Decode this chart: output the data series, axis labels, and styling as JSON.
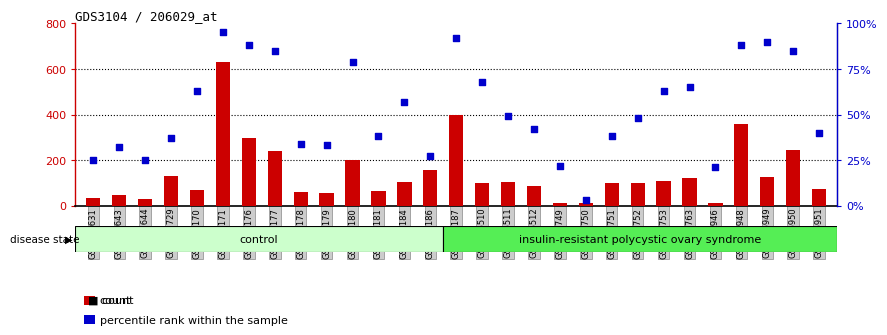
{
  "title": "GDS3104 / 206029_at",
  "samples": [
    "GSM155631",
    "GSM155643",
    "GSM155644",
    "GSM155729",
    "GSM156170",
    "GSM156171",
    "GSM156176",
    "GSM156177",
    "GSM156178",
    "GSM156179",
    "GSM156180",
    "GSM156181",
    "GSM156184",
    "GSM156186",
    "GSM156187",
    "GSM156510",
    "GSM156511",
    "GSM156512",
    "GSM156749",
    "GSM156750",
    "GSM156751",
    "GSM156752",
    "GSM156753",
    "GSM156763",
    "GSM156946",
    "GSM156948",
    "GSM156949",
    "GSM156950",
    "GSM156951"
  ],
  "counts": [
    35,
    45,
    28,
    130,
    70,
    630,
    295,
    240,
    60,
    55,
    200,
    65,
    105,
    155,
    400,
    100,
    105,
    85,
    12,
    10,
    100,
    100,
    110,
    120,
    10,
    360,
    125,
    245,
    75
  ],
  "percentiles": [
    25,
    32,
    25,
    37,
    63,
    95,
    88,
    85,
    34,
    33,
    79,
    38,
    57,
    27,
    92,
    68,
    49,
    42,
    22,
    3,
    38,
    48,
    63,
    65,
    21,
    88,
    90,
    85,
    40
  ],
  "control_count": 14,
  "bar_color": "#cc0000",
  "dot_color": "#0000cc",
  "control_bg": "#ccffcc",
  "disease_bg": "#55ee55",
  "ylim_left": [
    0,
    800
  ],
  "ylim_right": [
    0,
    100
  ],
  "yticks_left": [
    0,
    200,
    400,
    600,
    800
  ],
  "yticks_right": [
    0,
    25,
    50,
    75,
    100
  ],
  "ytick_labels_right": [
    "0%",
    "25%",
    "50%",
    "75%",
    "100%"
  ],
  "grid_values": [
    200,
    400,
    600
  ],
  "legend_count_label": "count",
  "legend_pct_label": "percentile rank within the sample",
  "disease_label": "insulin-resistant polycystic ovary syndrome",
  "control_label": "control",
  "disease_state_label": "disease state"
}
